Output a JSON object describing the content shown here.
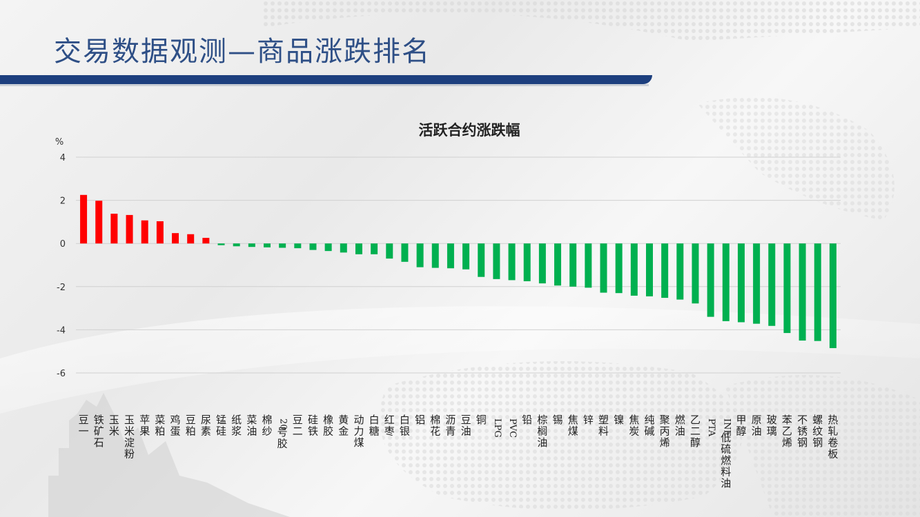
{
  "page": {
    "title": "交易数据观测—商品涨跌排名"
  },
  "colors": {
    "positive": "#ff0000",
    "negative": "#00b050",
    "title_blue": "#2e4f86",
    "bar_blue": "#1d3f7e"
  },
  "chart_data": {
    "type": "bar",
    "title": "活跃合约涨跌幅",
    "ylabel": "%",
    "xlabel": "",
    "ylim": [
      -6,
      4
    ],
    "yticks": [
      4,
      2,
      0,
      -2,
      -4,
      -6
    ],
    "grid": true,
    "legend": "none",
    "categories": [
      "豆一",
      "铁矿石",
      "玉米",
      "玉米淀粉",
      "苹果",
      "菜粕",
      "鸡蛋",
      "豆粕",
      "尿素",
      "锰硅",
      "纸浆",
      "菜油",
      "棉纱",
      "20号胶",
      "豆二",
      "硅铁",
      "橡胶",
      "黄金",
      "动力煤",
      "白糖",
      "红枣",
      "白银",
      "铝",
      "棉花",
      "沥青",
      "豆油",
      "铜",
      "LPG",
      "PVC",
      "铅",
      "棕榈油",
      "锡",
      "焦煤",
      "锌",
      "塑料",
      "镍",
      "焦炭",
      "纯碱",
      "聚丙烯",
      "燃油",
      "乙二醇",
      "PTA",
      "INE低硫燃料油",
      "甲醇",
      "原油",
      "玻璃",
      "苯乙烯",
      "不锈钢",
      "螺纹钢",
      "热轧卷板"
    ],
    "values": [
      2.25,
      1.98,
      1.38,
      1.32,
      1.07,
      1.03,
      0.48,
      0.43,
      0.26,
      -0.08,
      -0.13,
      -0.16,
      -0.18,
      -0.2,
      -0.22,
      -0.3,
      -0.35,
      -0.42,
      -0.5,
      -0.5,
      -0.7,
      -0.85,
      -1.1,
      -1.13,
      -1.15,
      -1.2,
      -1.55,
      -1.65,
      -1.7,
      -1.75,
      -1.85,
      -1.95,
      -2.0,
      -2.05,
      -2.28,
      -2.3,
      -2.42,
      -2.45,
      -2.52,
      -2.6,
      -2.78,
      -3.4,
      -3.6,
      -3.65,
      -3.72,
      -3.82,
      -4.15,
      -4.5,
      -4.52,
      -4.85
    ]
  }
}
